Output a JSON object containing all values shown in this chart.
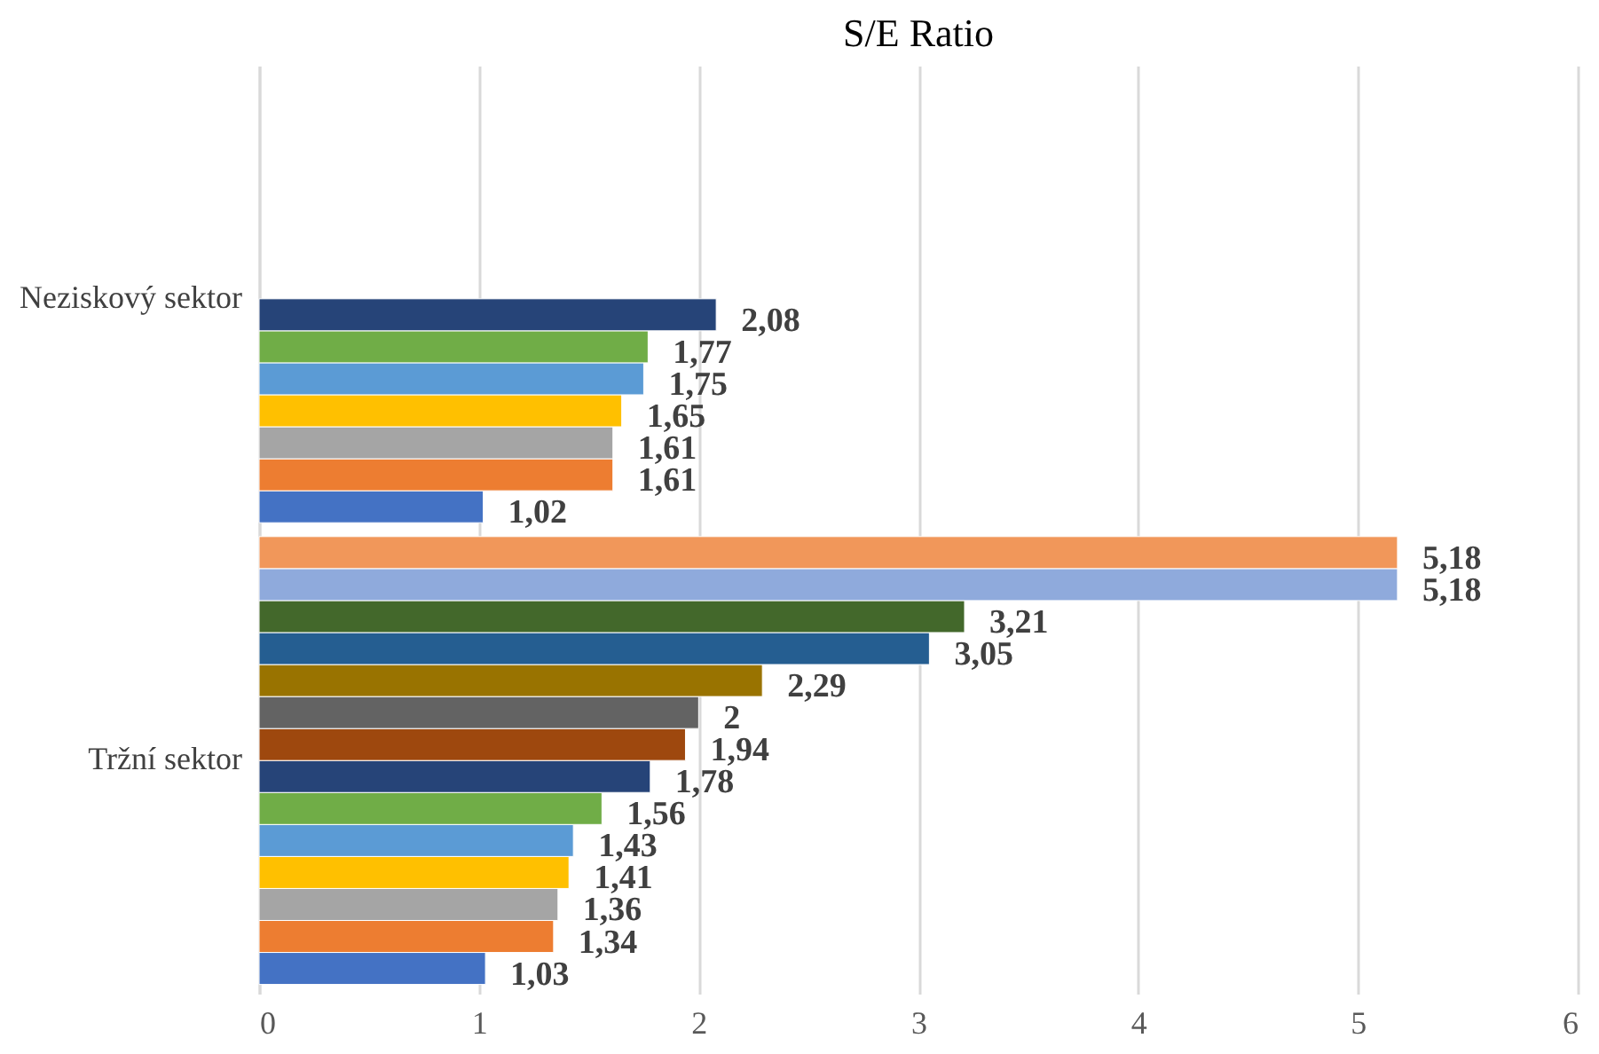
{
  "chart_data": {
    "type": "bar",
    "orientation": "horizontal",
    "title": "S/E Ratio",
    "categories": [
      "Neziskový sektor",
      "Tržní sektor"
    ],
    "series": [
      {
        "color": "#4472c4",
        "values": [
          1.02,
          1.03
        ],
        "value_labels": [
          "1,02",
          "1,03"
        ]
      },
      {
        "color": "#ed7d31",
        "values": [
          1.61,
          1.34
        ],
        "value_labels": [
          "1,61",
          "1,34"
        ]
      },
      {
        "color": "#a5a5a5",
        "values": [
          1.61,
          1.36
        ],
        "value_labels": [
          "1,61",
          "1,36"
        ]
      },
      {
        "color": "#ffc000",
        "values": [
          1.65,
          1.41
        ],
        "value_labels": [
          "1,65",
          "1,41"
        ]
      },
      {
        "color": "#5b9bd5",
        "values": [
          1.75,
          1.43
        ],
        "value_labels": [
          "1,75",
          "1,43"
        ]
      },
      {
        "color": "#70ad47",
        "values": [
          1.77,
          1.56
        ],
        "value_labels": [
          "1,77",
          "1,56"
        ]
      },
      {
        "color": "#264478",
        "values": [
          2.08,
          1.78
        ],
        "value_labels": [
          "2,08",
          "1,78"
        ]
      },
      {
        "color": "#9e480e",
        "values": [
          null,
          1.94
        ],
        "value_labels": [
          null,
          "1,94"
        ]
      },
      {
        "color": "#636363",
        "values": [
          null,
          2
        ],
        "value_labels": [
          null,
          "2"
        ]
      },
      {
        "color": "#997300",
        "values": [
          null,
          2.29
        ],
        "value_labels": [
          null,
          "2,29"
        ]
      },
      {
        "color": "#255e91",
        "values": [
          null,
          3.05
        ],
        "value_labels": [
          null,
          "3,05"
        ]
      },
      {
        "color": "#43682b",
        "values": [
          null,
          3.21
        ],
        "value_labels": [
          null,
          "3,21"
        ]
      },
      {
        "color": "#8faadc",
        "values": [
          null,
          5.18
        ],
        "value_labels": [
          null,
          "5,18"
        ]
      },
      {
        "color": "#f1975a",
        "values": [
          null,
          5.18
        ],
        "value_labels": [
          null,
          "5,18"
        ]
      }
    ],
    "xlim": [
      0,
      6
    ],
    "xticks": [
      0,
      1,
      2,
      3,
      4,
      5,
      6
    ],
    "grid": "x"
  }
}
